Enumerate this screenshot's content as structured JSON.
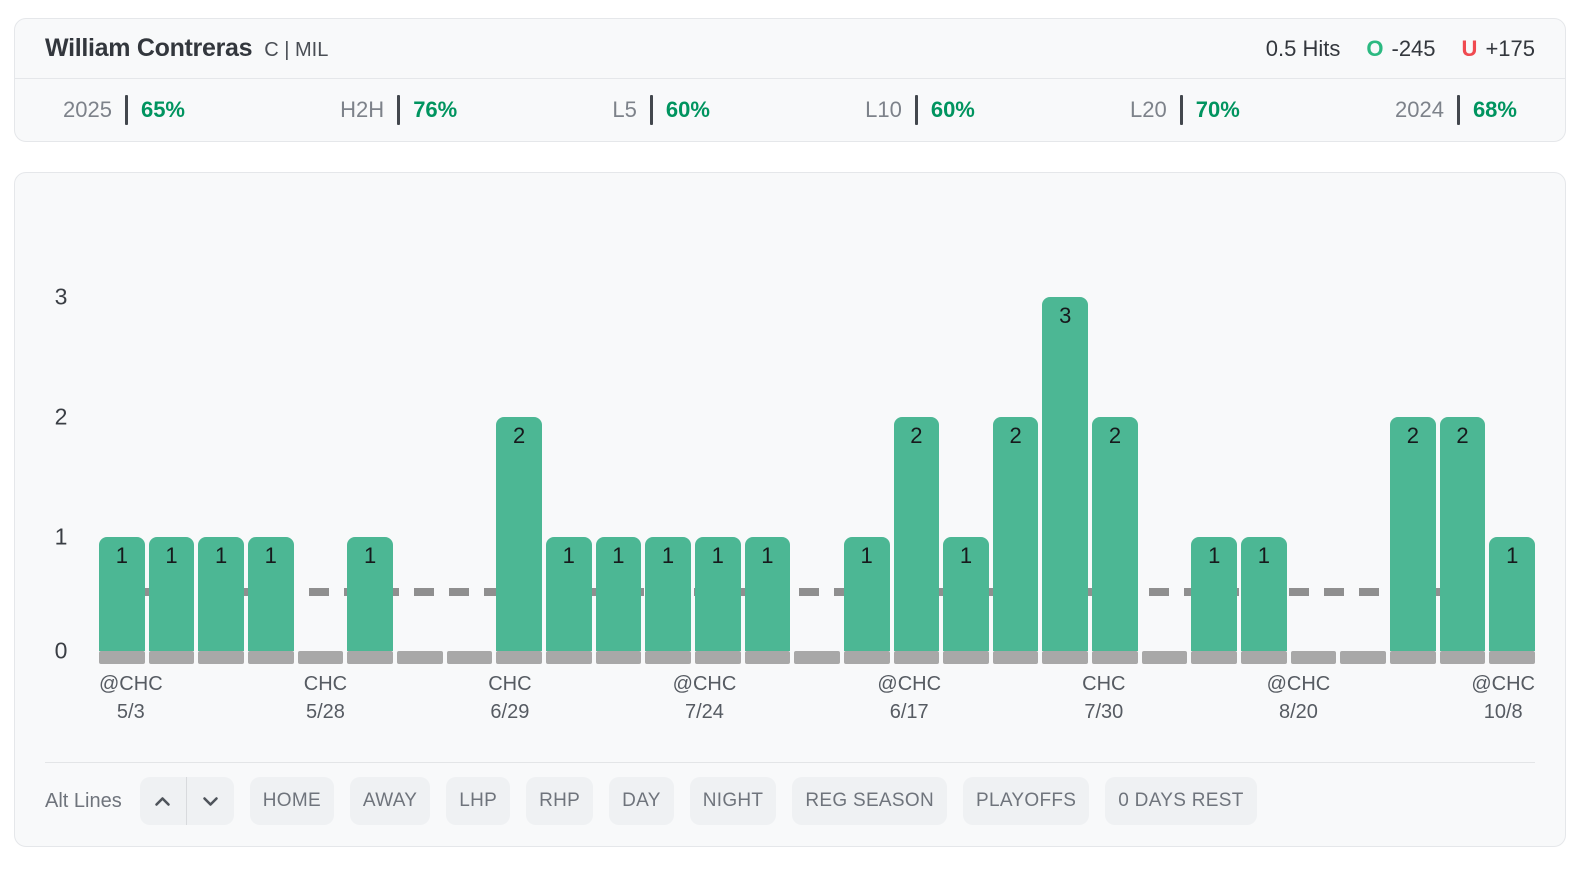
{
  "header": {
    "player_name": "William Contreras",
    "position_team": "C | MIL",
    "prop_line": "0.5 Hits",
    "over": {
      "label": "O",
      "odds": "-245"
    },
    "under": {
      "label": "U",
      "odds": "+175"
    }
  },
  "stats": [
    {
      "label": "2025",
      "value": "65%"
    },
    {
      "label": "H2H",
      "value": "76%"
    },
    {
      "label": "L5",
      "value": "60%"
    },
    {
      "label": "L10",
      "value": "60%"
    },
    {
      "label": "L20",
      "value": "70%"
    },
    {
      "label": "2024",
      "value": "68%"
    }
  ],
  "chart_data": {
    "type": "bar",
    "title": "",
    "xlabel": "",
    "ylabel": "",
    "ylim": [
      0,
      3
    ],
    "yticks": [
      0,
      1,
      2,
      3
    ],
    "threshold_line": 0.5,
    "values": [
      1,
      1,
      1,
      1,
      0,
      1,
      0,
      0,
      2,
      1,
      1,
      1,
      1,
      1,
      0,
      1,
      2,
      1,
      2,
      3,
      2,
      0,
      1,
      1,
      0,
      0,
      2,
      2,
      1
    ],
    "x_tick_labels": [
      {
        "index": 0,
        "line1": "@CHC",
        "line2": "5/3"
      },
      {
        "index": 4,
        "line1": "CHC",
        "line2": "5/28"
      },
      {
        "index": 8,
        "line1": "CHC",
        "line2": "6/29"
      },
      {
        "index": 12,
        "line1": "@CHC",
        "line2": "7/24"
      },
      {
        "index": 16,
        "line1": "@CHC",
        "line2": "6/17"
      },
      {
        "index": 20,
        "line1": "CHC",
        "line2": "7/30"
      },
      {
        "index": 24,
        "line1": "@CHC",
        "line2": "8/20"
      },
      {
        "index": 28,
        "line1": "@CHC",
        "line2": "10/8"
      }
    ],
    "bar_color": "#4cb794",
    "zero_stub_color": "#a8a8a8",
    "threshold_color": "#8f8f8f",
    "legend": "off",
    "grid": "off"
  },
  "controls": {
    "alt_lines_label": "Alt Lines",
    "filters": [
      "HOME",
      "AWAY",
      "LHP",
      "RHP",
      "DAY",
      "NIGHT",
      "REG SEASON",
      "PLAYOFFS",
      "0 DAYS REST"
    ]
  },
  "colors": {
    "over_green": "#2bb981",
    "under_red": "#f04a50",
    "stat_green": "#00945f",
    "bar_green": "#4cb794",
    "card_bg": "#f8f9fa",
    "card_border": "#e5e7ea"
  }
}
